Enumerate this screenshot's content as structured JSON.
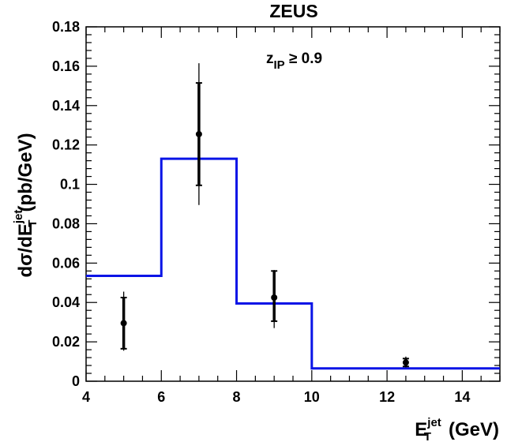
{
  "chart_data": {
    "type": "scatter",
    "title": "ZEUS",
    "annotation": {
      "main": "z",
      "sub": "IP",
      "rel": " ≥ 0.9"
    },
    "xlabel": {
      "main": "E",
      "sub": "T",
      "sup": "jet",
      "unit": "(GeV)"
    },
    "ylabel": {
      "pre": "dσ/dE",
      "sub": "T",
      "sup": "jet",
      "unit": "(pb/GeV)"
    },
    "xlim": [
      4,
      15
    ],
    "ylim": [
      0,
      0.18
    ],
    "xticks": [
      "4",
      "6",
      "8",
      "10",
      "12",
      "14"
    ],
    "yticks": [
      "0",
      "0.02",
      "0.04",
      "0.06",
      "0.08",
      "0.1",
      "0.12",
      "0.14",
      "0.16",
      "0.18"
    ],
    "grid": false,
    "series": [
      {
        "kind": "data-points",
        "color": "#000000",
        "points": [
          {
            "x": 5,
            "y": 0.0295,
            "stat_lo": 0.0165,
            "stat_hi": 0.0425,
            "syst_lo": 0.0155,
            "syst_hi": 0.0455
          },
          {
            "x": 7,
            "y": 0.1255,
            "stat_lo": 0.0995,
            "stat_hi": 0.1515,
            "syst_lo": 0.0895,
            "syst_hi": 0.1615
          },
          {
            "x": 9,
            "y": 0.0425,
            "stat_lo": 0.0305,
            "stat_hi": 0.056,
            "syst_lo": 0.027,
            "syst_hi": 0.0565
          },
          {
            "x": 12.5,
            "y": 0.0095,
            "stat_lo": 0.0075,
            "stat_hi": 0.0115,
            "syst_lo": 0.007,
            "syst_hi": 0.0125
          }
        ]
      },
      {
        "kind": "histogram",
        "color": "#0a14e6",
        "bins": [
          {
            "x0": 4,
            "x1": 6,
            "y": 0.0535
          },
          {
            "x0": 6,
            "x1": 8,
            "y": 0.113
          },
          {
            "x0": 8,
            "x1": 10,
            "y": 0.0395
          },
          {
            "x0": 10,
            "x1": 15,
            "y": 0.0065
          }
        ]
      }
    ]
  }
}
